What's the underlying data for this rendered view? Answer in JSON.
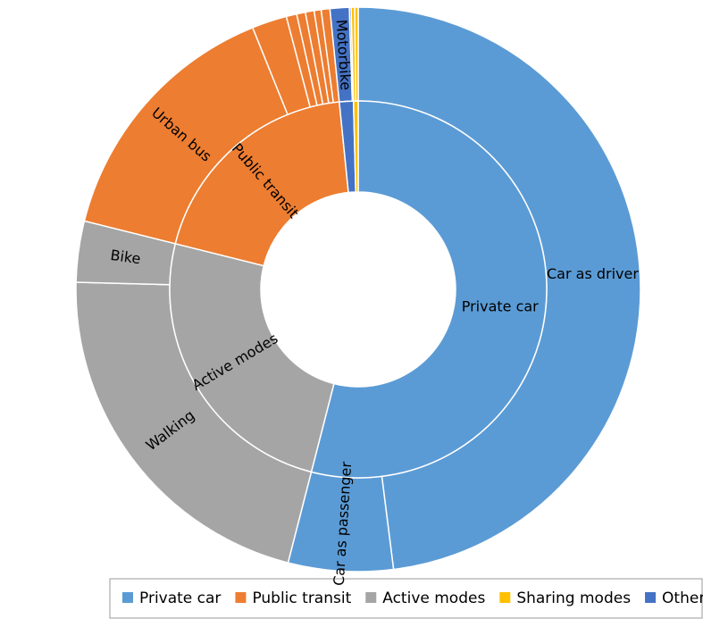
{
  "chart_data": {
    "type": "sunburst",
    "series": [
      {
        "name": "Private car",
        "color": "#5b9bd5",
        "children": [
          {
            "name": "Car as driver",
            "value": 48
          },
          {
            "name": "Car as passenger",
            "value": 6
          }
        ]
      },
      {
        "name": "Active modes",
        "color": "#a5a5a5",
        "children": [
          {
            "name": "Walking",
            "value": 21.4
          },
          {
            "name": "Bike",
            "value": 3.5
          }
        ]
      },
      {
        "name": "Public transit",
        "color": "#ed7d31",
        "children": [
          {
            "name": "Urban bus",
            "value": 15
          },
          {
            "value": 2
          },
          {
            "value": 0.6
          },
          {
            "value": 0.5
          },
          {
            "value": 0.5
          },
          {
            "value": 0.4
          },
          {
            "value": 0.5
          }
        ]
      },
      {
        "color": "#4472c4",
        "children": [
          {
            "name": "Motorbike",
            "value": 1.1
          },
          {
            "value": 0.1
          }
        ]
      },
      {
        "color": "#ffc000",
        "children": [
          {
            "value": 0.2
          },
          {
            "value": 0.2
          }
        ]
      }
    ],
    "legend": [
      {
        "name": "Private car",
        "color": "#5b9bd5"
      },
      {
        "name": "Public transit",
        "color": "#ed7d31"
      },
      {
        "name": "Active modes",
        "color": "#a5a5a5"
      },
      {
        "name": "Sharing modes",
        "color": "#ffc000"
      },
      {
        "name": "Others",
        "color": "#4472c4"
      }
    ]
  }
}
